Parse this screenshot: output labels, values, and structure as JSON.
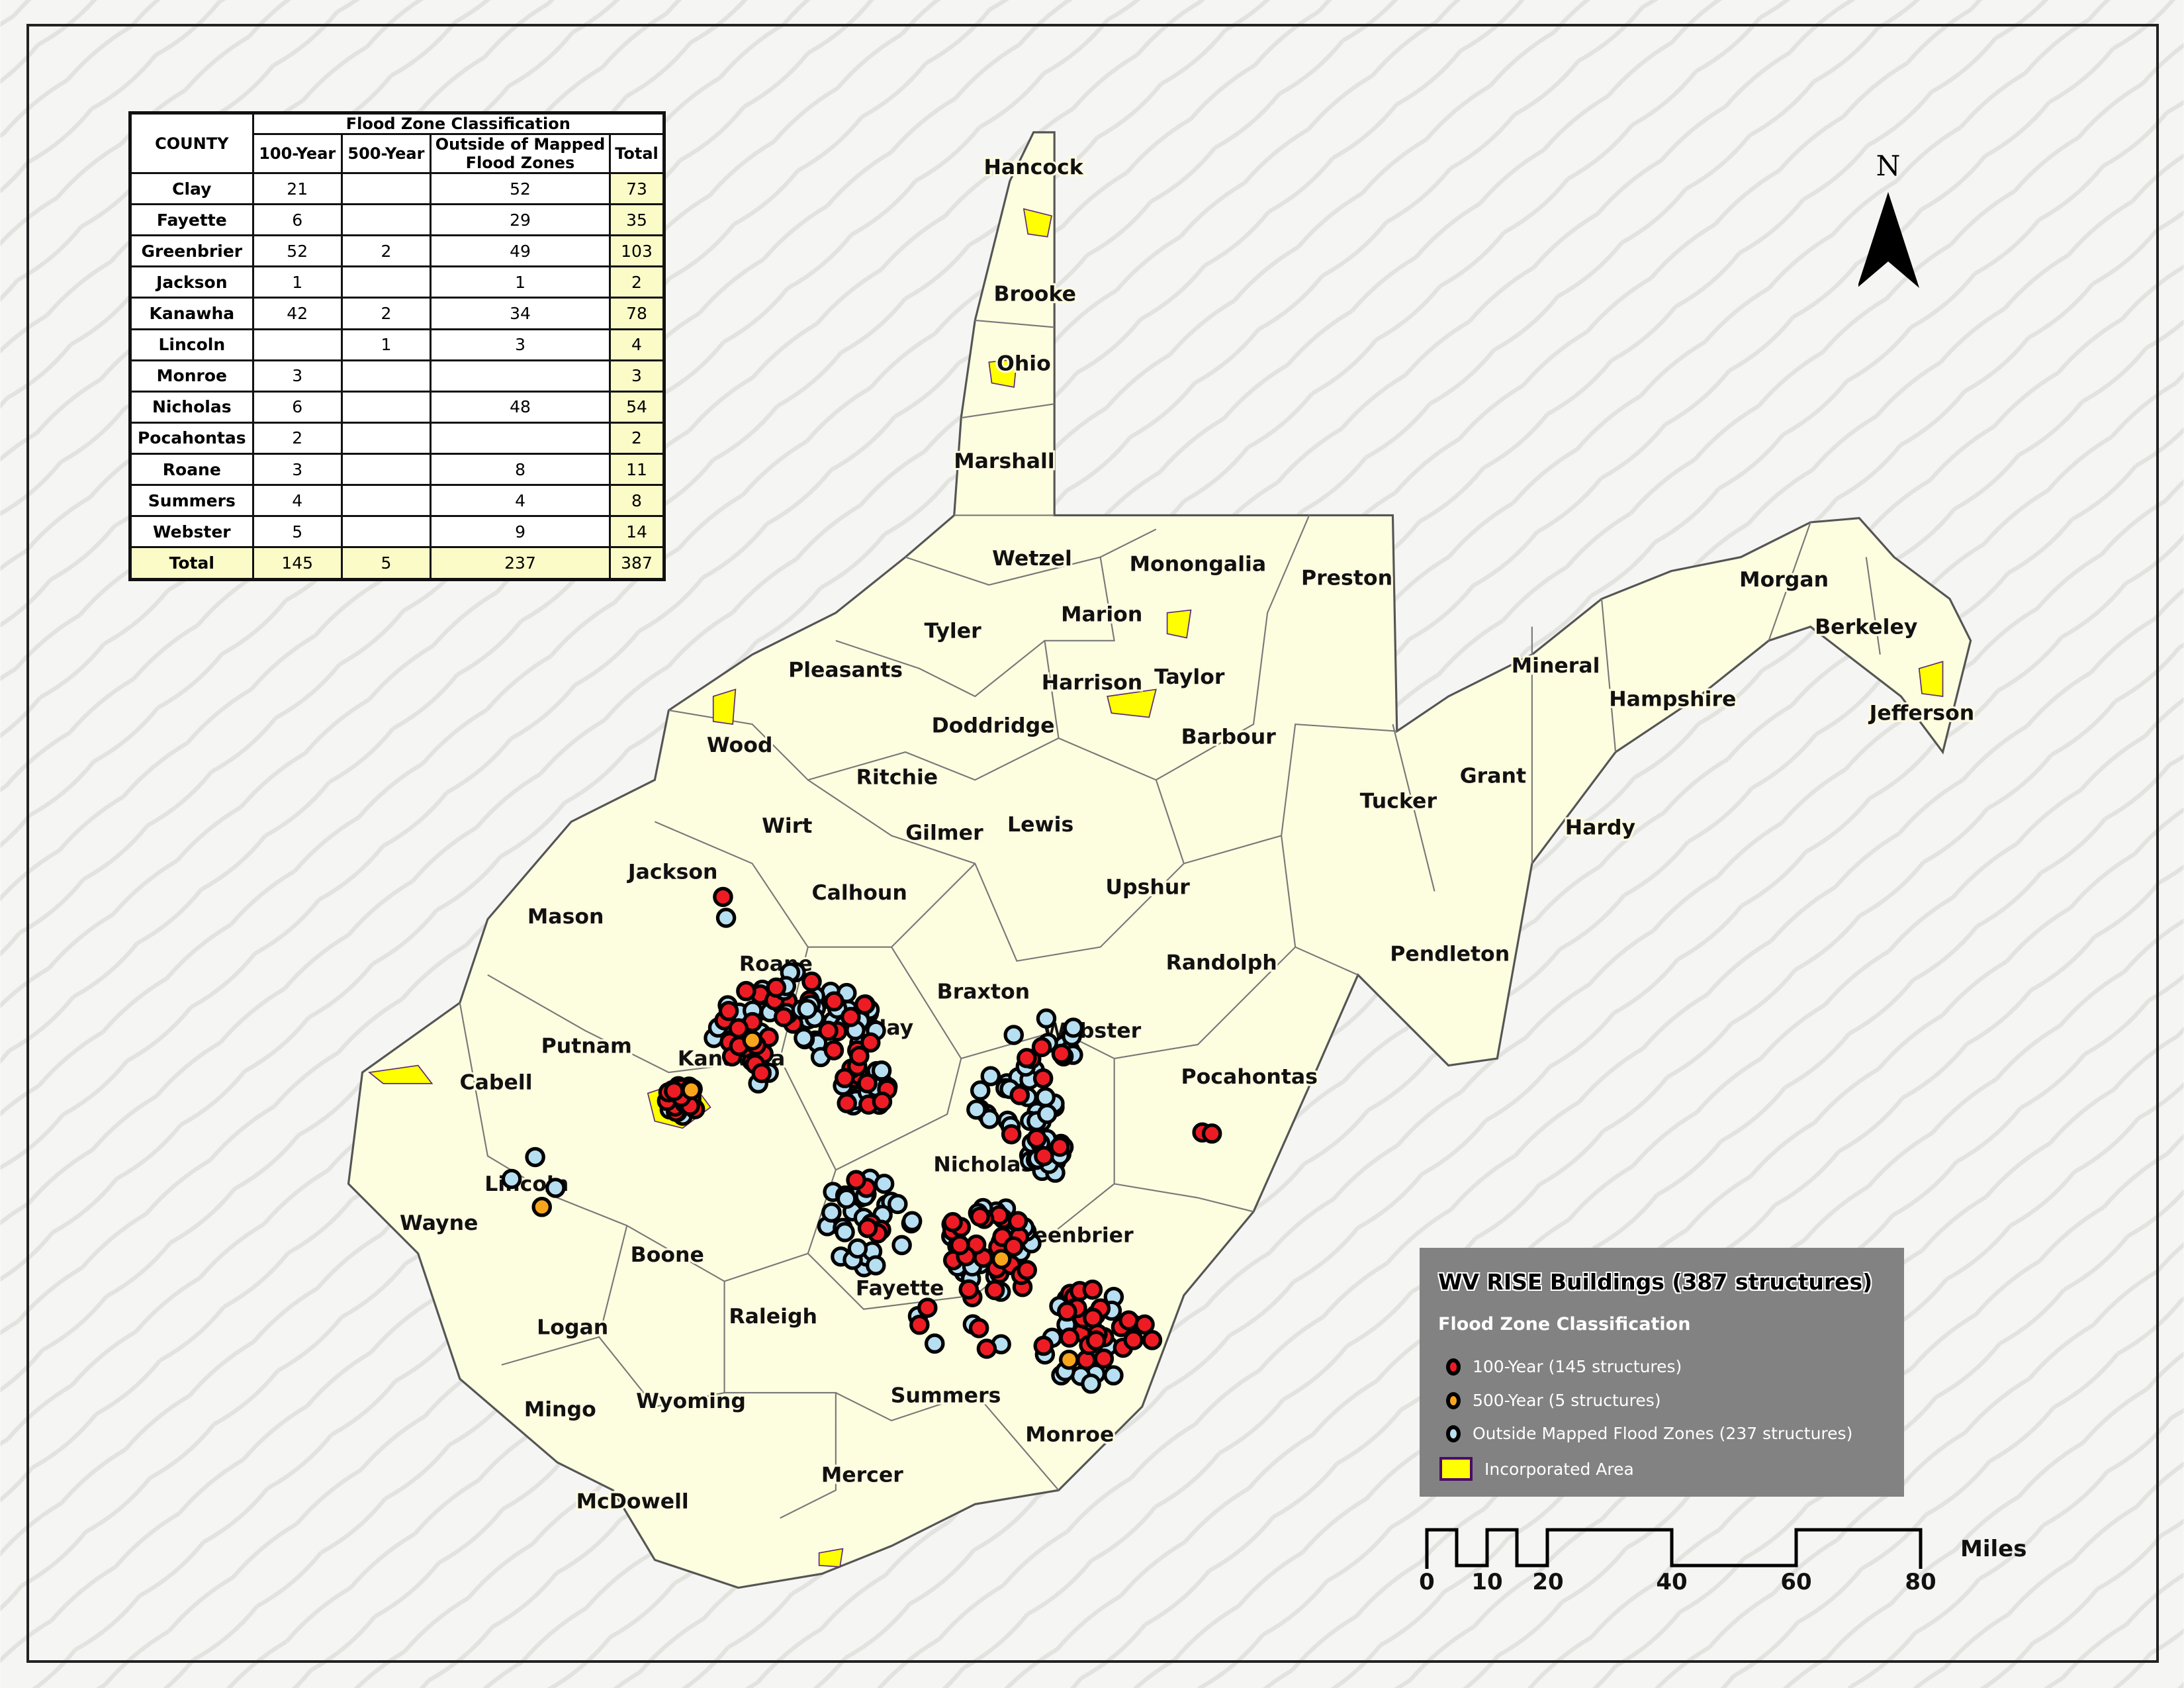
{
  "table": {
    "county_header": "COUNTY",
    "group_header": "Flood Zone Classification",
    "columns": [
      "100-Year",
      "500-Year",
      "Outside of Mapped Flood Zones",
      "Total"
    ],
    "rows": [
      {
        "county": "Clay",
        "y100": "21",
        "y500": "",
        "outside": "52",
        "total": "73"
      },
      {
        "county": "Fayette",
        "y100": "6",
        "y500": "",
        "outside": "29",
        "total": "35"
      },
      {
        "county": "Greenbrier",
        "y100": "52",
        "y500": "2",
        "outside": "49",
        "total": "103"
      },
      {
        "county": "Jackson",
        "y100": "1",
        "y500": "",
        "outside": "1",
        "total": "2"
      },
      {
        "county": "Kanawha",
        "y100": "42",
        "y500": "2",
        "outside": "34",
        "total": "78"
      },
      {
        "county": "Lincoln",
        "y100": "",
        "y500": "1",
        "outside": "3",
        "total": "4"
      },
      {
        "county": "Monroe",
        "y100": "3",
        "y500": "",
        "outside": "",
        "total": "3"
      },
      {
        "county": "Nicholas",
        "y100": "6",
        "y500": "",
        "outside": "48",
        "total": "54"
      },
      {
        "county": "Pocahontas",
        "y100": "2",
        "y500": "",
        "outside": "",
        "total": "2"
      },
      {
        "county": "Roane",
        "y100": "3",
        "y500": "",
        "outside": "8",
        "total": "11"
      },
      {
        "county": "Summers",
        "y100": "4",
        "y500": "",
        "outside": "4",
        "total": "8"
      },
      {
        "county": "Webster",
        "y100": "5",
        "y500": "",
        "outside": "9",
        "total": "14"
      }
    ],
    "total_row": {
      "county": "Total",
      "y100": "145",
      "y500": "5",
      "outside": "237",
      "total": "387"
    }
  },
  "legend": {
    "title": "WV RISE Buildings (387 structures)",
    "subtitle": "Flood Zone Classification",
    "items": [
      {
        "label": "100-Year (145 structures)",
        "color": "#ed1c24"
      },
      {
        "label": "500-Year (5 structures)",
        "color": "#f7a51c"
      },
      {
        "label": "Outside Mapped Flood Zones (237 structures)",
        "color": "#b7dff2"
      },
      {
        "label": "Incorporated Area",
        "color": "#ffff00"
      }
    ]
  },
  "north_label": "N",
  "scale": {
    "unit": "Miles",
    "ticks": [
      "0",
      "10",
      "20",
      "40",
      "60",
      "80"
    ]
  },
  "counties": [
    "Hancock",
    "Brooke",
    "Ohio",
    "Marshall",
    "Wetzel",
    "Monongalia",
    "Preston",
    "Marion",
    "Tyler",
    "Pleasants",
    "Harrison",
    "Taylor",
    "Wood",
    "Doddridge",
    "Barbour",
    "Ritchie",
    "Mineral",
    "Hampshire",
    "Morgan",
    "Berkeley",
    "Jefferson",
    "Grant",
    "Tucker",
    "Hardy",
    "Wirt",
    "Gilmer",
    "Lewis",
    "Jackson",
    "Calhoun",
    "Upshur",
    "Mason",
    "Roane",
    "Randolph",
    "Pendleton",
    "Braxton",
    "Clay",
    "Webster",
    "Putnam",
    "Kanawha",
    "Cabell",
    "Pocahontas",
    "Nicholas",
    "Lincoln",
    "Wayne",
    "Boone",
    "Greenbrier",
    "Fayette",
    "Logan",
    "Raleigh",
    "Mingo",
    "Wyoming",
    "Summers",
    "Monroe",
    "Mercer",
    "McDowell"
  ],
  "colors": {
    "state_fill": "#fdfde0",
    "county_border": "#666666",
    "background": "#f4f4f2"
  }
}
